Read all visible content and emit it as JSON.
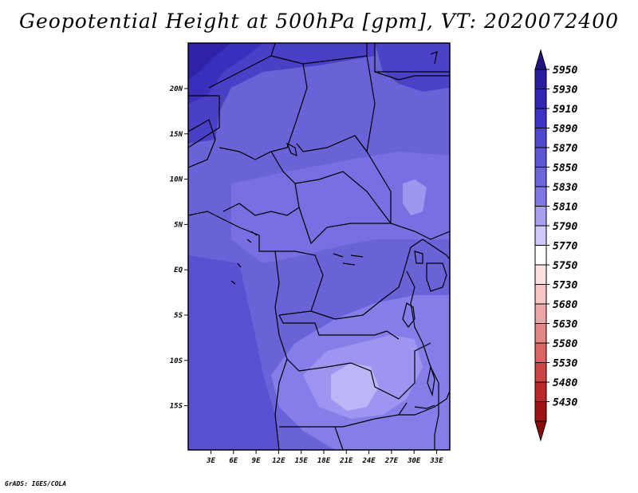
{
  "title": "Geopotential Height at 500hPa [gpm], VT: 2020072400",
  "credit": "GrADS: IGES/COLA",
  "map": {
    "lon_ticks": [
      "3E",
      "6E",
      "9E",
      "12E",
      "15E",
      "18E",
      "21E",
      "24E",
      "27E",
      "30E",
      "33E"
    ],
    "lat_ticks": [
      "20N",
      "15N",
      "10N",
      "5N",
      "EQ",
      "5S",
      "10S",
      "15S"
    ],
    "background_color": "#6a63d8"
  },
  "colorbar": {
    "levels": [
      "5950",
      "5930",
      "5910",
      "5890",
      "5870",
      "5850",
      "5830",
      "5810",
      "5790",
      "5770",
      "5750",
      "5730",
      "5680",
      "5630",
      "5580",
      "5530",
      "5480",
      "5430"
    ],
    "colors": [
      "#2a1ea0",
      "#3424b4",
      "#3e32c4",
      "#5047cf",
      "#5f56d6",
      "#6e66dd",
      "#8078e6",
      "#a79ff0",
      "#cfc9f8",
      "#ffffff",
      "#fbe1e1",
      "#f6c6c6",
      "#eea6a6",
      "#e38787",
      "#d96565",
      "#cc4545",
      "#b82929",
      "#9e1414"
    ],
    "arrow_top_color": "#1e1482",
    "arrow_bottom_color": "#8b0b0b"
  }
}
